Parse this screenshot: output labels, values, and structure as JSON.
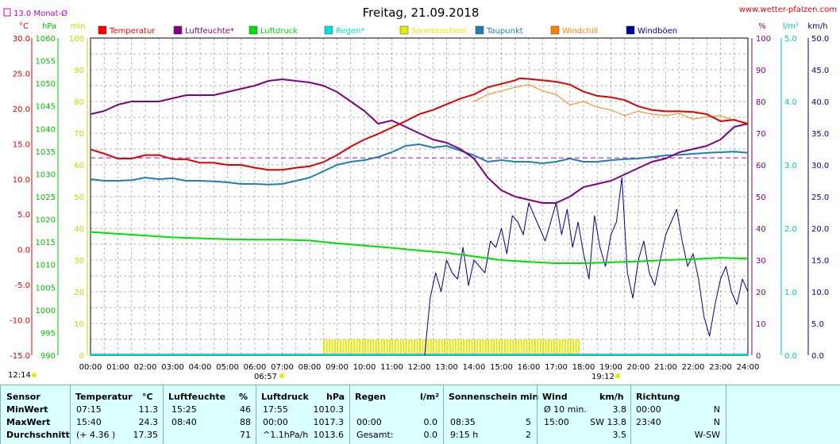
{
  "chart_data": {
    "type": "line",
    "title": "Freitag, 21.09.2018",
    "source": "www.wetter-pfalzen.com",
    "monthly_avg_label": "13.0 Monat-Ø",
    "monthly_avg_value": 13.0,
    "axes": {
      "temp": {
        "unit": "°C",
        "range": [
          -15,
          30
        ],
        "ticks": [
          "30.0",
          "25.0",
          "20.0",
          "15.0",
          "10.0",
          "5.0",
          "0.0",
          "-5.0",
          "-10.0",
          "-15.0"
        ]
      },
      "press": {
        "unit": "hPa",
        "range": [
          990,
          1060
        ],
        "ticks": [
          "1060",
          "1055",
          "1050",
          "1045",
          "1040",
          "1035",
          "1030",
          "1025",
          "1020",
          "1015",
          "1010",
          "1005",
          "1000",
          "995",
          "990"
        ]
      },
      "sun": {
        "unit": "min",
        "range": [
          0,
          100
        ],
        "ticks": [
          "100",
          "90",
          "80",
          "70",
          "60",
          "50",
          "40",
          "30",
          "20",
          "10",
          "0"
        ]
      },
      "hum": {
        "unit": "%",
        "range": [
          0,
          100
        ],
        "ticks": [
          "100",
          "90",
          "80",
          "70",
          "60",
          "50",
          "40",
          "30",
          "20",
          "10",
          "0"
        ]
      },
      "rain": {
        "unit": "l/m²",
        "range": [
          0,
          5
        ],
        "ticks": [
          "5.0",
          "4.0",
          "3.0",
          "2.0",
          "1.0",
          "0.0"
        ]
      },
      "wind": {
        "unit": "km/h",
        "range": [
          0,
          50
        ],
        "ticks": [
          "50.0",
          "45.0",
          "40.0",
          "35.0",
          "30.0",
          "25.0",
          "20.0",
          "15.0",
          "10.0",
          "5.0",
          "0.0"
        ]
      }
    },
    "x_ticks": [
      "00:00",
      "01:00",
      "02:00",
      "03:00",
      "04:00",
      "05:00",
      "06:00",
      "07:00",
      "08:00",
      "09:00",
      "10:00",
      "11:00",
      "12:00",
      "13:00",
      "14:00",
      "15:00",
      "16:00",
      "17:00",
      "18:00",
      "19:00",
      "20:00",
      "21:00",
      "22:00",
      "23:00",
      "24:00"
    ],
    "sunrise": "06:57",
    "sunset": "19:12",
    "left_time": "12:14",
    "grid": true,
    "legend": [
      {
        "name": "Temperatur",
        "color": "#ff0000"
      },
      {
        "name": "Luftfeuchte*",
        "color": "#800080"
      },
      {
        "name": "Luftdruck",
        "color": "#00e000"
      },
      {
        "name": "Regen*",
        "color": "#00e0e0"
      },
      {
        "name": "Sonnenschein",
        "color": "#e8e800"
      },
      {
        "name": "Taupunkt",
        "color": "#1e7fb4"
      },
      {
        "name": "Windchill",
        "color": "#ff8000"
      },
      {
        "name": "Windböen",
        "color": "#000090"
      }
    ],
    "series": [
      {
        "name": "Temperatur",
        "axis": "temp",
        "color": "#e00000",
        "x": [
          0,
          0.5,
          1,
          1.5,
          2,
          2.5,
          3,
          3.5,
          4,
          4.5,
          5,
          5.5,
          6,
          6.5,
          7,
          7.5,
          8,
          8.5,
          9,
          9.5,
          10,
          10.5,
          11,
          11.5,
          12,
          12.5,
          13,
          13.5,
          14,
          14.5,
          15,
          15.5,
          15.67,
          16,
          16.5,
          17,
          17.5,
          18,
          18.5,
          19,
          19.5,
          20,
          20.5,
          21,
          21.5,
          22,
          22.5,
          23,
          23.5,
          24
        ],
        "y": [
          14.2,
          13.6,
          12.9,
          12.9,
          13.4,
          13.4,
          12.8,
          12.8,
          12.3,
          12.3,
          12.0,
          12.0,
          11.6,
          11.3,
          11.3,
          11.6,
          11.8,
          12.4,
          13.4,
          14.6,
          15.6,
          16.4,
          17.3,
          18.2,
          19.2,
          19.8,
          20.6,
          21.4,
          22.0,
          23.0,
          23.5,
          24.0,
          24.3,
          24.2,
          24.0,
          23.8,
          23.4,
          22.4,
          21.8,
          21.6,
          21.2,
          20.3,
          19.8,
          19.6,
          19.6,
          19.5,
          19.2,
          18.2,
          18.4,
          17.8
        ]
      },
      {
        "name": "Luftfeuchte*",
        "axis": "hum",
        "color": "#800080",
        "x": [
          0,
          0.5,
          1,
          1.5,
          2,
          2.5,
          3,
          3.5,
          4,
          4.5,
          5,
          5.5,
          6,
          6.5,
          7,
          7.5,
          8,
          8.5,
          9,
          9.5,
          10,
          10.5,
          11,
          11.5,
          12,
          12.5,
          13,
          13.5,
          14,
          14.5,
          15,
          15.5,
          16,
          16.5,
          17,
          17.5,
          18,
          18.5,
          19,
          19.5,
          20,
          20.5,
          21,
          21.5,
          22,
          22.5,
          23,
          23.5,
          24
        ],
        "y": [
          76,
          77,
          79,
          80,
          80,
          80,
          81,
          82,
          82,
          82,
          83,
          84,
          85,
          86.5,
          87,
          86.5,
          86,
          85,
          83,
          80,
          77,
          73,
          74,
          72,
          70,
          68,
          67,
          65,
          62,
          56,
          52,
          50,
          49,
          48,
          48,
          50,
          53,
          54,
          55,
          57,
          59,
          61,
          62,
          64,
          65,
          66,
          68,
          72,
          73
        ]
      },
      {
        "name": "Luftdruck",
        "axis": "press",
        "color": "#00e000",
        "x": [
          0,
          1,
          2,
          3,
          4,
          5,
          6,
          7,
          8,
          9,
          10,
          11,
          12,
          13,
          14,
          15,
          16,
          17,
          18,
          19,
          20,
          21,
          22,
          23,
          24
        ],
        "y": [
          1017.2,
          1016.8,
          1016.4,
          1016.0,
          1015.8,
          1015.6,
          1015.5,
          1015.5,
          1015.3,
          1014.7,
          1014.2,
          1013.7,
          1013.1,
          1012.6,
          1011.8,
          1011.0,
          1010.6,
          1010.3,
          1010.3,
          1010.5,
          1010.7,
          1011.0,
          1011.2,
          1011.5,
          1011.3
        ]
      },
      {
        "name": "Taupunkt",
        "axis": "hum",
        "color": "#1e7fb4",
        "x": [
          0,
          0.5,
          1,
          1.5,
          2,
          2.5,
          3,
          3.5,
          4,
          4.5,
          5,
          5.5,
          6,
          6.5,
          7,
          7.5,
          8,
          8.5,
          9,
          9.5,
          10,
          10.5,
          11,
          11.5,
          12,
          12.5,
          13,
          13.5,
          14,
          14.5,
          15,
          15.5,
          16,
          16.5,
          17,
          17.5,
          18,
          18.5,
          19,
          19.5,
          20,
          20.5,
          21,
          21.5,
          22,
          22.5,
          23,
          23.5,
          24
        ],
        "y": [
          55.5,
          55.0,
          55.0,
          55.2,
          56.0,
          55.5,
          55.8,
          55.0,
          55.0,
          54.8,
          54.5,
          54.0,
          54.0,
          53.8,
          54.0,
          55.0,
          56.0,
          58.0,
          60.0,
          61.0,
          61.5,
          62.5,
          64.0,
          66.0,
          66.5,
          65.5,
          66.0,
          64.5,
          63.0,
          61.0,
          61.5,
          61.0,
          61.0,
          60.5,
          61.0,
          62.0,
          61.0,
          61.0,
          61.5,
          61.8,
          62.0,
          62.5,
          63.0,
          63.2,
          63.5,
          63.8,
          64.0,
          64.2,
          63.8
        ]
      },
      {
        "name": "Windchill",
        "axis": "temp",
        "color": "#ff8000",
        "x": [
          14.0,
          14.5,
          15,
          15.5,
          16,
          16.5,
          17,
          17.5,
          18,
          18.5,
          19,
          19.5,
          20,
          20.5,
          21,
          21.5,
          22,
          22.5,
          23,
          23.5,
          24
        ],
        "y": [
          21.0,
          22.0,
          22.5,
          23.0,
          23.4,
          22.5,
          22.0,
          20.5,
          21.0,
          20.2,
          19.8,
          19.0,
          19.6,
          19.2,
          19.0,
          19.3,
          18.5,
          18.8,
          19.0,
          18.3,
          18.0
        ]
      },
      {
        "name": "Windböen",
        "axis": "wind",
        "color": "#000090",
        "x": [
          12.2,
          12.4,
          12.6,
          12.8,
          13.0,
          13.2,
          13.4,
          13.6,
          13.8,
          14.0,
          14.2,
          14.4,
          14.6,
          14.8,
          15.0,
          15.2,
          15.4,
          15.6,
          15.8,
          16.0,
          16.2,
          16.4,
          16.6,
          16.8,
          17.0,
          17.2,
          17.4,
          17.6,
          17.8,
          18.0,
          18.2,
          18.4,
          18.6,
          18.8,
          19.0,
          19.2,
          19.4,
          19.6,
          19.8,
          20.0,
          20.2,
          20.4,
          20.6,
          20.8,
          21.0,
          21.2,
          21.4,
          21.6,
          21.8,
          22.0,
          22.2,
          22.4,
          22.6,
          22.8,
          23.0,
          23.2,
          23.4,
          23.6,
          23.8,
          24.0
        ],
        "y": [
          0,
          9,
          13,
          10,
          15,
          13,
          12,
          17,
          11,
          15,
          14,
          13,
          18,
          17,
          20,
          16,
          22,
          21,
          19,
          24,
          22,
          20,
          18,
          21,
          24,
          19,
          23,
          17,
          21,
          16,
          12,
          22,
          17,
          14,
          19,
          21,
          28,
          13,
          9,
          15,
          18,
          13,
          11,
          15,
          19,
          21,
          23,
          18,
          14,
          16,
          12,
          6,
          3,
          8,
          12,
          14,
          10,
          8,
          12,
          10
        ]
      }
    ],
    "sunshine": {
      "start": 8.5,
      "end": 17.8,
      "level_min": 5
    },
    "avg_line": {
      "axis": "temp",
      "value": 13.0,
      "color": "#c000c0"
    }
  },
  "footer": {
    "sensor": {
      "header": "Sensor",
      "rows": [
        "MinWert",
        "MaxWert",
        "Durchschnitt"
      ]
    },
    "temperature": {
      "header": "Temperatur",
      "unit": "°C",
      "rows": [
        [
          "07:15",
          "11.3"
        ],
        [
          "15:40",
          "24.3"
        ],
        [
          "(+ 4.36 )",
          "17.35"
        ]
      ]
    },
    "humidity": {
      "header": "Luftfeuchte",
      "unit": "%",
      "rows": [
        [
          "15:25",
          "46"
        ],
        [
          "08:40",
          "88"
        ],
        [
          "",
          "71"
        ]
      ]
    },
    "pressure": {
      "header": "Luftdruck",
      "unit": "hPa",
      "rows": [
        [
          "17:55",
          "1010.3"
        ],
        [
          "00:00",
          "1017.3"
        ],
        [
          "^1.1hPa/h",
          "1013.6"
        ]
      ]
    },
    "rain": {
      "header": "Regen",
      "unit": "l/m²",
      "rows": [
        [
          "",
          ""
        ],
        [
          "00:00",
          "0.0"
        ],
        [
          "Gesamt:",
          "0.0"
        ]
      ],
      "row0_value": "0.0"
    },
    "sunshine": {
      "header": "Sonnenschein min",
      "rows": [
        [
          "",
          ""
        ],
        [
          "08:35",
          "5"
        ],
        [
          "9:15 h",
          "2"
        ]
      ]
    },
    "wind": {
      "header": "Wind",
      "unit": "km/h",
      "rows": [
        [
          "Ø 10 min.",
          "3.8"
        ],
        [
          "15:00",
          "SW 13.8"
        ],
        [
          "",
          "3.5"
        ]
      ]
    },
    "direction": {
      "header": "Richtung",
      "rows": [
        [
          "00:00",
          "N"
        ],
        [
          "23:40",
          "N"
        ],
        [
          "",
          "W-SW"
        ]
      ]
    }
  }
}
